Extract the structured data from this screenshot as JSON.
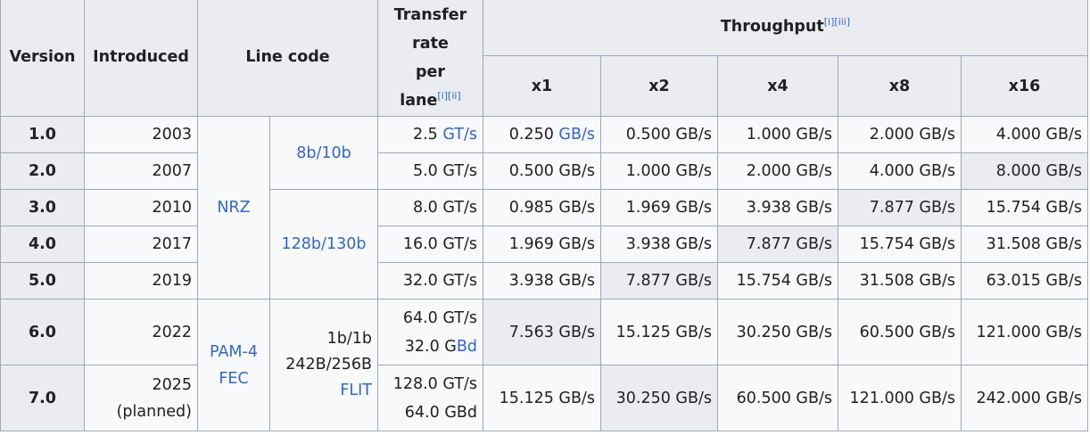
{
  "headers": {
    "version": "Version",
    "introduced": "Introduced",
    "line_code": "Line code",
    "transfer_rate": [
      "Transfer",
      "rate",
      "per",
      "lane"
    ],
    "transfer_rate_refs": "[i][ii]",
    "throughput": "Throughput",
    "throughput_refs": "[i][iii]",
    "lanes": [
      "x1",
      "x2",
      "x4",
      "x8",
      "x16"
    ]
  },
  "line_codes": {
    "nrz": "NRZ",
    "pam4_fec": [
      "PAM-4",
      "FEC"
    ],
    "code_8b10b": "8b/10b",
    "code_128b130b": "128b/130b",
    "code_flit": [
      "1b/1b",
      "242B/256B",
      "FLIT"
    ]
  },
  "rows": [
    {
      "version": "1.0",
      "introduced": "2003",
      "rate": [
        "2.5 ",
        "GT/s"
      ],
      "values": [
        "0.250 GB/s",
        "0.500 GB/s",
        "1.000 GB/s",
        "2.000 GB/s",
        "4.000 GB/s"
      ]
    },
    {
      "version": "2.0",
      "introduced": "2007",
      "rate": [
        "5.0 GT/s"
      ],
      "values": [
        "0.500 GB/s",
        "1.000 GB/s",
        "2.000 GB/s",
        "4.000 GB/s",
        "8.000 GB/s"
      ]
    },
    {
      "version": "3.0",
      "introduced": "2010",
      "rate": [
        "8.0 GT/s"
      ],
      "values": [
        "0.985 GB/s",
        "1.969 GB/s",
        "3.938 GB/s",
        "7.877 GB/s",
        "15.754 GB/s"
      ]
    },
    {
      "version": "4.0",
      "introduced": "2017",
      "rate": [
        "16.0 GT/s"
      ],
      "values": [
        "1.969 GB/s",
        "3.938 GB/s",
        "7.877 GB/s",
        "15.754 GB/s",
        "31.508 GB/s"
      ]
    },
    {
      "version": "5.0",
      "introduced": "2019",
      "rate": [
        "32.0 GT/s"
      ],
      "values": [
        "3.938 GB/s",
        "7.877 GB/s",
        "15.754 GB/s",
        "31.508 GB/s",
        "63.015 GB/s"
      ]
    },
    {
      "version": "6.0",
      "introduced": "2022",
      "rate": [
        "64.0 GT/s",
        "32.0 G",
        "Bd"
      ],
      "values": [
        "7.563 GB/s",
        "15.125 GB/s",
        "30.250 GB/s",
        "60.500 GB/s",
        "121.000 GB/s"
      ]
    },
    {
      "version": "7.0",
      "introduced": [
        "2025",
        "(planned)"
      ],
      "rate": [
        "128.0 GT/s",
        "64.0 GBd"
      ],
      "values": [
        "15.125 GB/s",
        "30.250 GB/s",
        "60.500 GB/s",
        "121.000 GB/s",
        "242.000 GB/s"
      ]
    }
  ],
  "row1_x1_parts": [
    "0.250 ",
    "GB/s"
  ]
}
